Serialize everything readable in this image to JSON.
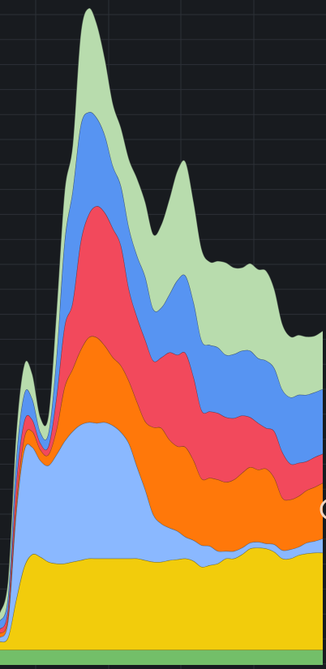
{
  "chart_data": {
    "type": "area",
    "stacked": true,
    "grid": true,
    "background": "#181b1f",
    "grid_color": "#2c3037",
    "x": [
      0,
      1,
      2,
      3,
      4,
      5,
      6,
      7,
      8,
      9,
      10,
      11,
      12,
      13,
      14,
      15,
      16,
      17,
      18,
      19,
      20,
      21,
      22,
      23,
      24,
      25,
      26,
      27,
      28,
      29,
      30,
      31,
      32,
      33,
      34,
      35,
      36,
      37,
      38,
      39,
      40
    ],
    "xlim": [
      0,
      40
    ],
    "ylim": [
      0,
      800
    ],
    "series": [
      {
        "color": "#73bf69",
        "values": [
          18,
          18,
          18,
          18,
          18,
          18,
          18,
          18,
          18,
          18,
          18,
          18,
          18,
          18,
          18,
          18,
          18,
          18,
          18,
          18,
          18,
          18,
          18,
          18,
          18,
          18,
          18,
          18,
          18,
          18,
          18,
          18,
          18,
          18,
          18,
          18,
          18,
          18,
          18,
          18,
          18
        ]
      },
      {
        "color": "#f2cc0c",
        "values": [
          10,
          15,
          60,
          100,
          115,
          112,
          106,
          104,
          104,
          106,
          108,
          110,
          110,
          110,
          110,
          110,
          110,
          110,
          108,
          106,
          106,
          108,
          109,
          110,
          107,
          100,
          102,
          104,
          110,
          110,
          115,
          122,
          123,
          122,
          118,
          110,
          110,
          114,
          116,
          117,
          117
        ]
      },
      {
        "color": "#8ab8ff",
        "values": [
          5,
          20,
          104,
          140,
          129,
          116,
          116,
          131,
          147,
          157,
          163,
          164,
          163,
          164,
          160,
          152,
          138,
          110,
          85,
          57,
          46,
          39,
          34,
          26,
          25,
          26,
          23,
          15,
          9,
          9,
          8,
          7,
          7,
          6,
          9,
          10,
          11,
          10,
          13,
          14,
          17
        ]
      },
      {
        "color": "#ff780a",
        "values": [
          5,
          5,
          10,
          15,
          19,
          13,
          13,
          30,
          65,
          75,
          90,
          102,
          103,
          92,
          82,
          80,
          75,
          78,
          82,
          105,
          115,
          106,
          102,
          108,
          96,
          80,
          82,
          86,
          83,
          86,
          90,
          91,
          87,
          90,
          80,
          63,
          60,
          61,
          63,
          65,
          67
        ]
      },
      {
        "color": "#f2495c",
        "values": [
          5,
          10,
          25,
          20,
          14,
          8,
          10,
          39,
          73,
          80,
          130,
          148,
          158,
          160,
          155,
          144,
          110,
          102,
          98,
          80,
          85,
          105,
          110,
          113,
          100,
          82,
          80,
          80,
          78,
          74,
          69,
          60,
          56,
          49,
          56,
          55,
          43,
          40,
          35,
          36,
          35
        ]
      },
      {
        "color": "#5794f2",
        "values": [
          10,
          15,
          30,
          33,
          25,
          13,
          16,
          48,
          102,
          134,
          140,
          123,
          106,
          93,
          75,
          72,
          74,
          74,
          76,
          62,
          60,
          70,
          90,
          93,
          90,
          84,
          80,
          79,
          75,
          77,
          78,
          80,
          78,
          81,
          76,
          75,
          80,
          82,
          80,
          78,
          78
        ]
      },
      {
        "color": "#b8dcad",
        "values": [
          10,
          20,
          30,
          35,
          30,
          18,
          21,
          55,
          60,
          55,
          110,
          125,
          113,
          92,
          75,
          70,
          83,
          93,
          90,
          90,
          100,
          115,
          132,
          137,
          121,
          110,
          100,
          104,
          111,
          104,
          100,
          105,
          107,
          108,
          95,
          79,
          73,
          72,
          70,
          68,
          70
        ]
      }
    ]
  }
}
